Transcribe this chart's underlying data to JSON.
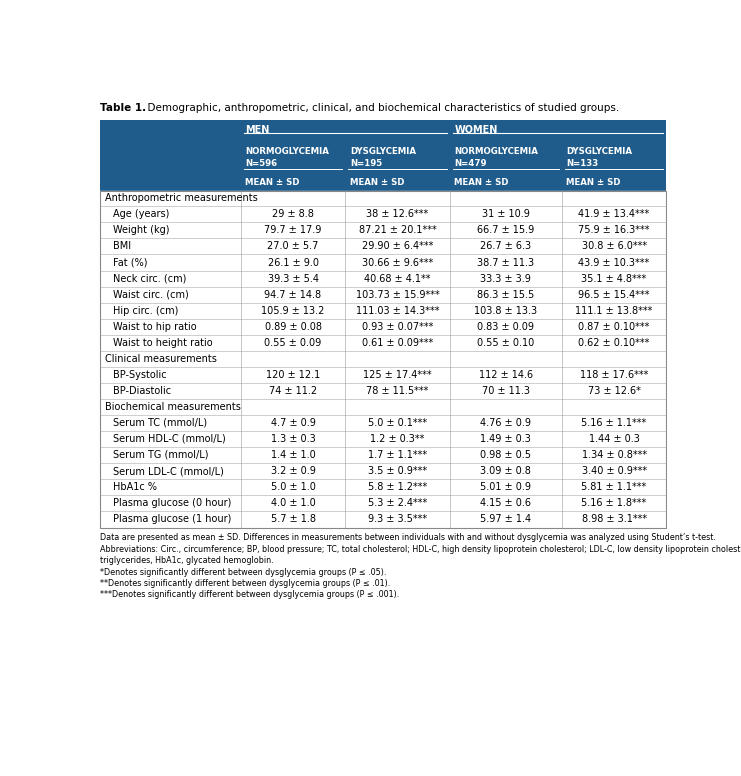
{
  "title_bold": "Table 1.",
  "title_rest": "  Demographic, anthropometric, clinical, and biochemical characteristics of studied groups.",
  "header_bg": "#1f5c8b",
  "header_text": "#ffffff",
  "border_color": "#999999",
  "divider_color": "#cccccc",
  "sections": [
    {
      "section_label": "Anthropometric measurements",
      "rows": [
        [
          "Age (years)",
          "29 ± 8.8",
          "38 ± 12.6***",
          "31 ± 10.9",
          "41.9 ± 13.4***"
        ],
        [
          "Weight (kg)",
          "79.7 ± 17.9",
          "87.21 ± 20.1***",
          "66.7 ± 15.9",
          "75.9 ± 16.3***"
        ],
        [
          "BMI",
          "27.0 ± 5.7",
          "29.90 ± 6.4***",
          "26.7 ± 6.3",
          "30.8 ± 6.0***"
        ],
        [
          "Fat (%)",
          "26.1 ± 9.0",
          "30.66 ± 9.6***",
          "38.7 ± 11.3",
          "43.9 ± 10.3***"
        ],
        [
          "Neck circ. (cm)",
          "39.3 ± 5.4",
          "40.68 ± 4.1**",
          "33.3 ± 3.9",
          "35.1 ± 4.8***"
        ],
        [
          "Waist circ. (cm)",
          "94.7 ± 14.8",
          "103.73 ± 15.9***",
          "86.3 ± 15.5",
          "96.5 ± 15.4***"
        ],
        [
          "Hip circ. (cm)",
          "105.9 ± 13.2",
          "111.03 ± 14.3***",
          "103.8 ± 13.3",
          "111.1 ± 13.8***"
        ],
        [
          "Waist to hip ratio",
          "0.89 ± 0.08",
          "0.93 ± 0.07***",
          "0.83 ± 0.09",
          "0.87 ± 0.10***"
        ],
        [
          "Waist to height ratio",
          "0.55 ± 0.09",
          "0.61 ± 0.09***",
          "0.55 ± 0.10",
          "0.62 ± 0.10***"
        ]
      ]
    },
    {
      "section_label": "Clinical measurements",
      "rows": [
        [
          "BP-Systolic",
          "120 ± 12.1",
          "125 ± 17.4***",
          "112 ± 14.6",
          "118 ± 17.6***"
        ],
        [
          "BP-Diastolic",
          "74 ± 11.2",
          "78 ± 11.5***",
          "70 ± 11.3",
          "73 ± 12.6*"
        ]
      ]
    },
    {
      "section_label": "Biochemical measurements",
      "rows": [
        [
          "Serum TC (mmol/L)",
          "4.7 ± 0.9",
          "5.0 ± 0.1***",
          "4.76 ± 0.9",
          "5.16 ± 1.1***"
        ],
        [
          "Serum HDL-C (mmol/L)",
          "1.3 ± 0.3",
          "1.2 ± 0.3**",
          "1.49 ± 0.3",
          "1.44 ± 0.3"
        ],
        [
          "Serum TG (mmol/L)",
          "1.4 ± 1.0",
          "1.7 ± 1.1***",
          "0.98 ± 0.5",
          "1.34 ± 0.8***"
        ],
        [
          "Serum LDL-C (mmol/L)",
          "3.2 ± 0.9",
          "3.5 ± 0.9***",
          "3.09 ± 0.8",
          "3.40 ± 0.9***"
        ],
        [
          "HbA1c %",
          "5.0 ± 1.0",
          "5.8 ± 1.2***",
          "5.01 ± 0.9",
          "5.81 ± 1.1***"
        ],
        [
          "Plasma glucose (0 hour)",
          "4.0 ± 1.0",
          "5.3 ± 2.4***",
          "4.15 ± 0.6",
          "5.16 ± 1.8***"
        ],
        [
          "Plasma glucose (1 hour)",
          "5.7 ± 1.8",
          "9.3 ± 3.5***",
          "5.97 ± 1.4",
          "8.98 ± 3.1***"
        ]
      ]
    }
  ],
  "footnotes": [
    "Data are presented as mean ± SD. Differences in measurements between individuals with and without dysglycemia was analyzed using Student’s t-test.",
    "Abbreviations: Circ., circumference; BP, blood pressure; TC, total cholesterol; HDL-C, high density lipoprotein cholesterol; LDL-C, low density lipoprotein cholesterol, TG,",
    "triglycerides, HbA1c, glycated hemoglobin.",
    "*Denotes significantly different between dysglycemia groups (P ≤ .05).",
    "**Denotes significantly different between dysglycemia groups (P ≤ .01).",
    "***Denotes significantly different between dysglycemia groups (P ≤ .001)."
  ]
}
